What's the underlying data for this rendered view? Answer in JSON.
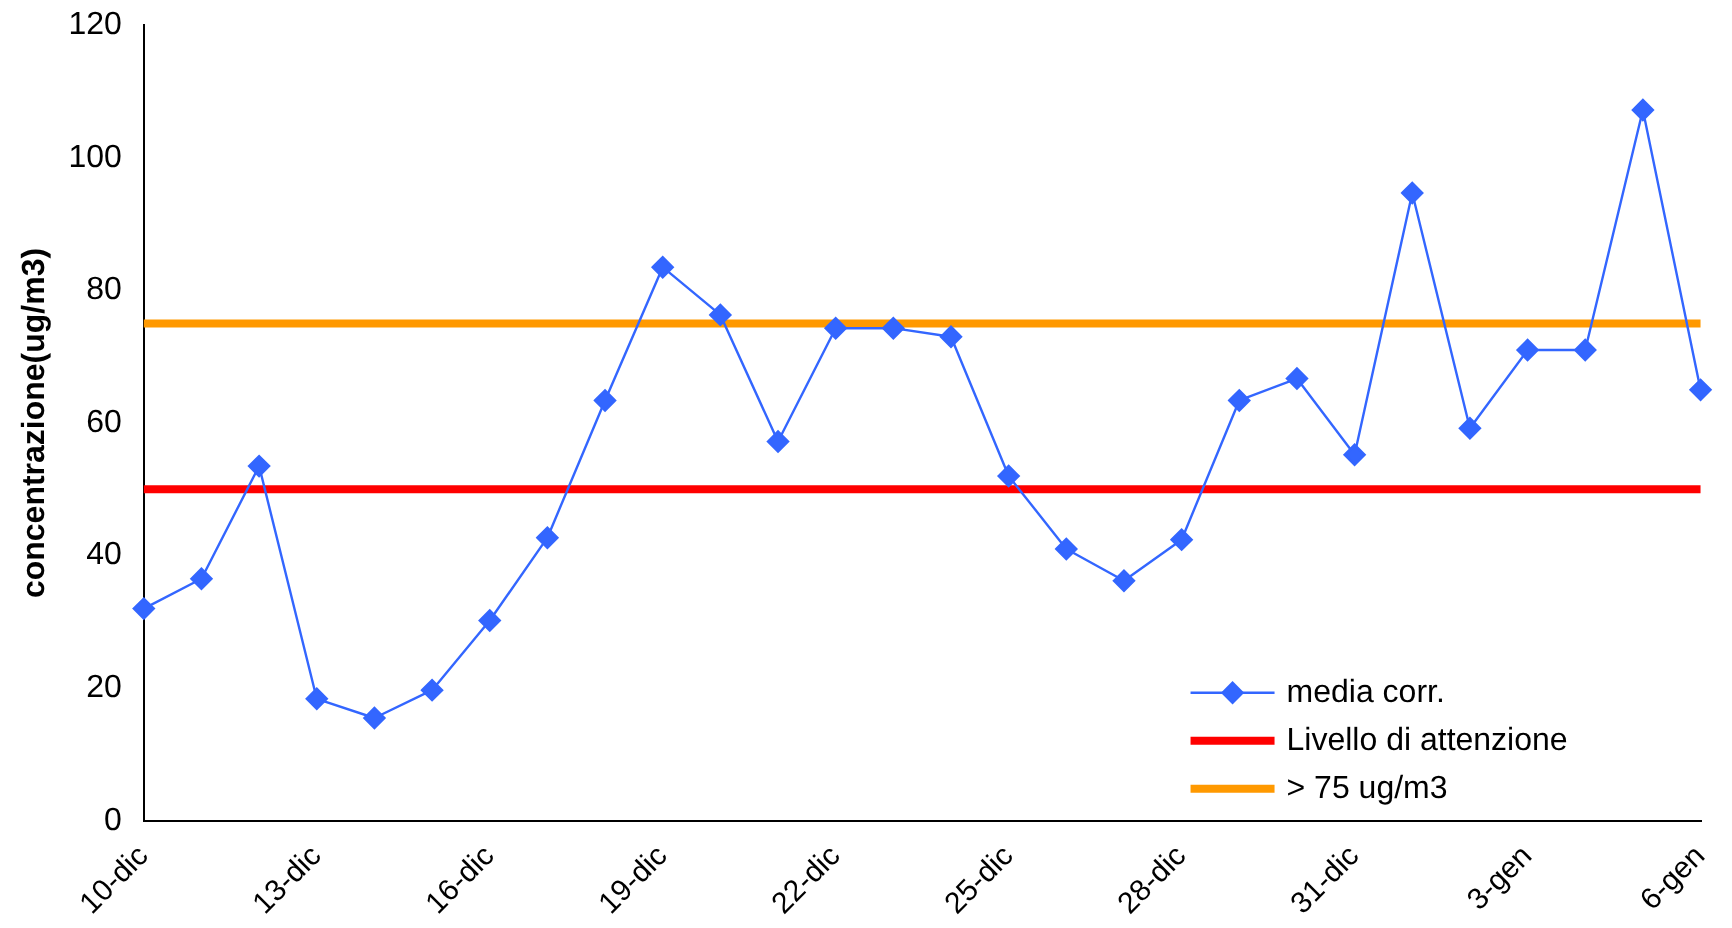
{
  "chart_data": {
    "type": "line",
    "ylabel": "concentrazione(ug/m3)",
    "categories": [
      "10-dic",
      null,
      null,
      "13-dic",
      null,
      null,
      "16-dic",
      null,
      null,
      "19-dic",
      null,
      null,
      "22-dic",
      null,
      null,
      "25-dic",
      null,
      null,
      "28-dic",
      null,
      null,
      "31-dic",
      null,
      null,
      "3-gen",
      null,
      null,
      "6-gen"
    ],
    "series": [
      {
        "name": "media corr.",
        "color": "#3366ff",
        "values": [
          32,
          36.5,
          53.5,
          18.4,
          15.5,
          19.7,
          30.2,
          42.7,
          63.4,
          83.5,
          76.3,
          57.2,
          74.3,
          74.3,
          73,
          52,
          41,
          36.2,
          42.4,
          63.4,
          66.7,
          55.2,
          94.7,
          59.2,
          71,
          71,
          107.2,
          65
        ]
      }
    ],
    "ref_lines": [
      {
        "axis": "y",
        "value": 50,
        "label": "Livello di attenzione",
        "color": "#ff0000"
      },
      {
        "axis": "y",
        "value": 75,
        "label": "> 75 ug/m3",
        "color": "#ff9900"
      }
    ],
    "ylim": [
      0,
      120
    ],
    "yticks": [
      0,
      20,
      40,
      60,
      80,
      100,
      120
    ],
    "grid": false,
    "legend": "bottom right",
    "marker": "diamond",
    "line_style": "solid"
  }
}
